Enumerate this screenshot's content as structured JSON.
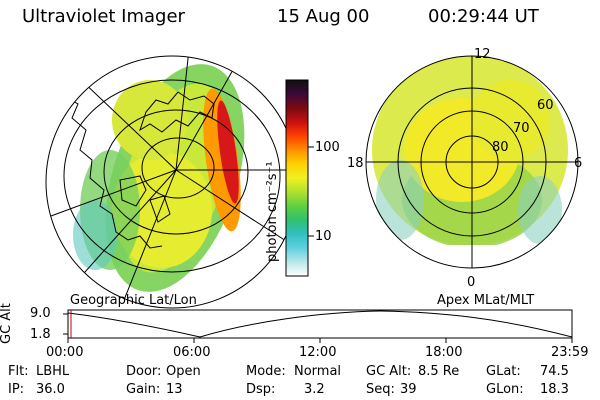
{
  "header": {
    "instrument": "Ultraviolet Imager",
    "date": "15 Aug 00",
    "time": "00:29:44 UT"
  },
  "left_panel": {
    "label": "Geographic Lat/Lon"
  },
  "right_panel": {
    "label": "Apex MLat/MLT",
    "mlt_labels": [
      "12",
      "18",
      "6",
      "0"
    ],
    "mlat_labels": [
      "60",
      "70",
      "80"
    ]
  },
  "colorbar": {
    "unit_label": "photon cm⁻²s⁻¹",
    "ticks": [
      "100",
      "10"
    ],
    "colors": [
      "#101010",
      "#3a0a3a",
      "#7a0a10",
      "#c81010",
      "#ff4000",
      "#ff9000",
      "#ffd000",
      "#f0f020",
      "#b0e030",
      "#60d040",
      "#30c070",
      "#30c0c0",
      "#60d0e0",
      "#b8e8e8",
      "#ffffff"
    ]
  },
  "gc_alt_plot": {
    "axis_label": "GC Alt",
    "y_ticks": [
      "9.0",
      "1.8"
    ],
    "x_ticks": [
      "00:00",
      "06:00",
      "12:00",
      "18:00",
      "23:59"
    ],
    "marker_color": "#c00000"
  },
  "status": {
    "filter_label": "Flt:",
    "filter_value": "LBHL",
    "ip_label": "IP:",
    "ip_value": "36.0",
    "door_label": "Door:",
    "door_value": "Open",
    "gain_label": "Gain:",
    "gain_value": "13",
    "mode_label": "Mode:",
    "mode_value": "Normal",
    "dsp_label": "Dsp:",
    "dsp_value": "3.2",
    "gcalt_label": "GC Alt:",
    "gcalt_value": "8.5 Re",
    "seq_label": "Seq:",
    "seq_value": "39",
    "glat_label": "GLat:",
    "glat_value": "74.5",
    "glon_label": "GLon:",
    "glon_value": "18.3"
  }
}
